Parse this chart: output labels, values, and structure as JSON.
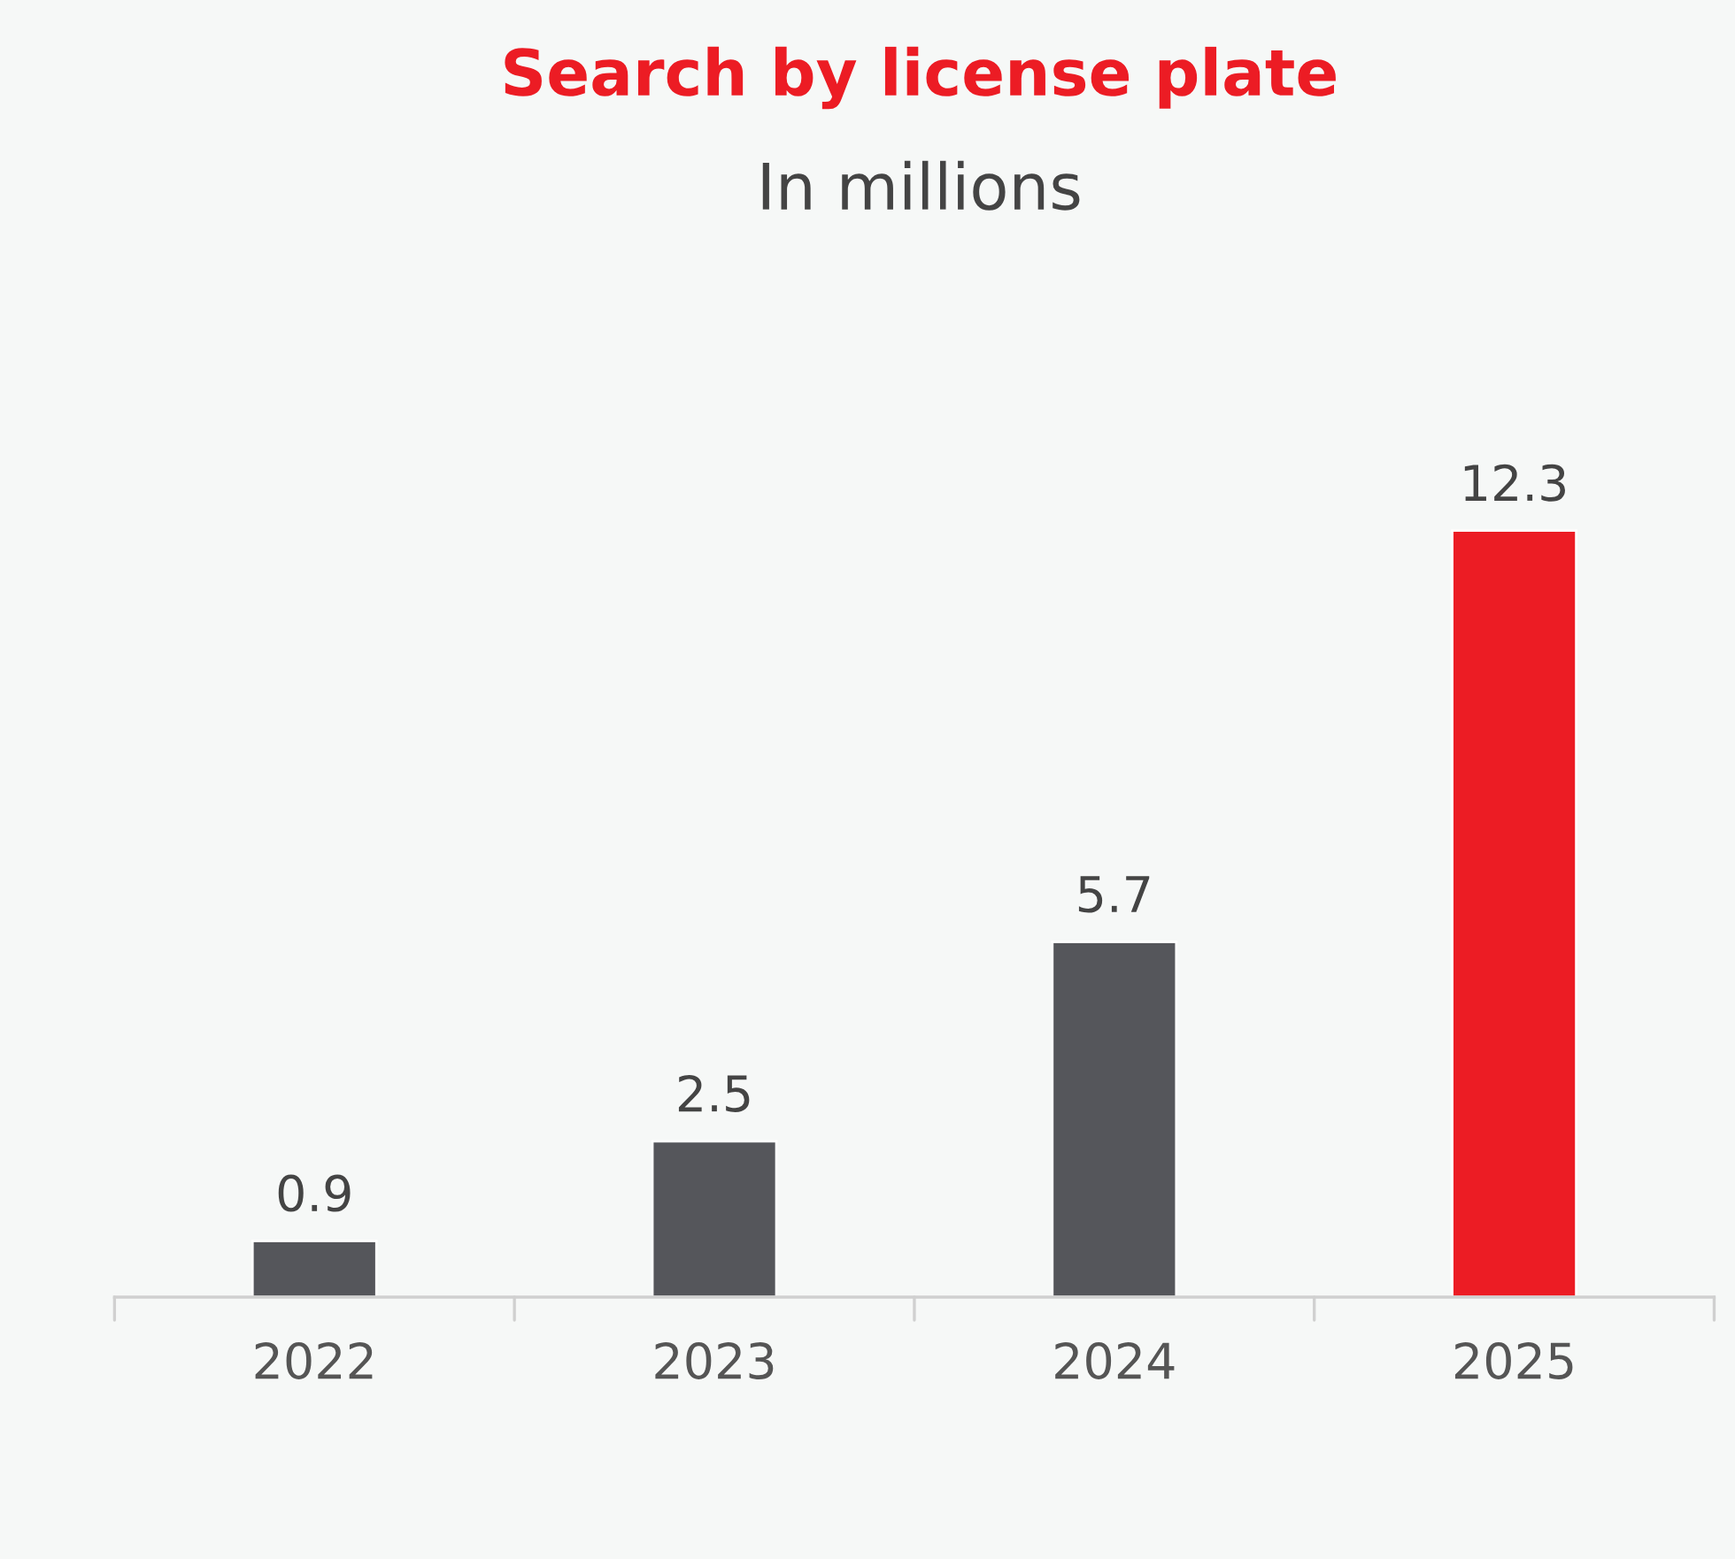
{
  "chart_data": {
    "type": "bar",
    "title": "Search by license plate",
    "subtitle": "In millions",
    "categories": [
      "2022",
      "2023",
      "2024",
      "2025"
    ],
    "values": [
      0.9,
      2.5,
      5.7,
      12.3
    ],
    "colors": [
      "#55565b",
      "#55565b",
      "#55565b",
      "#ec1c24"
    ],
    "data_labels": true,
    "grid": false,
    "legend": false,
    "tick_labels": "x"
  }
}
